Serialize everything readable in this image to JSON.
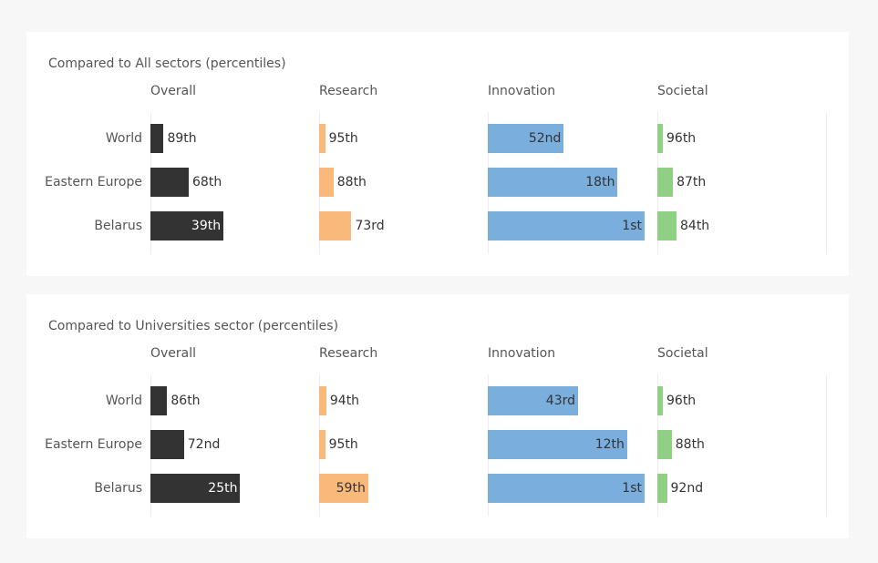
{
  "colors": {
    "overall": "#333333",
    "research": "#f9b97a",
    "innovation": "#7aaedc",
    "societal": "#8fd084"
  },
  "chart_data": [
    {
      "type": "bar",
      "title": "Compared to All sectors (percentiles)",
      "categories": [
        "World",
        "Eastern Europe",
        "Belarus"
      ],
      "series": [
        {
          "name": "Overall",
          "values": [
            89,
            68,
            39
          ],
          "labels": [
            "89th",
            "68th",
            "39th"
          ]
        },
        {
          "name": "Research",
          "values": [
            95,
            88,
            73
          ],
          "labels": [
            "95th",
            "88th",
            "73rd"
          ]
        },
        {
          "name": "Innovation",
          "values": [
            52,
            18,
            1
          ],
          "labels": [
            "52nd",
            "18th",
            "1st"
          ]
        },
        {
          "name": "Societal",
          "values": [
            96,
            87,
            84
          ],
          "labels": [
            "96th",
            "87th",
            "84th"
          ]
        }
      ],
      "orientation": "horizontal",
      "note_scale": "bar length grows as percentile rank improves (1st = longest)"
    },
    {
      "type": "bar",
      "title": "Compared to Universities sector (percentiles)",
      "categories": [
        "World",
        "Eastern Europe",
        "Belarus"
      ],
      "series": [
        {
          "name": "Overall",
          "values": [
            86,
            72,
            25
          ],
          "labels": [
            "86th",
            "72nd",
            "25th"
          ]
        },
        {
          "name": "Research",
          "values": [
            94,
            95,
            59
          ],
          "labels": [
            "94th",
            "95th",
            "59th"
          ]
        },
        {
          "name": "Innovation",
          "values": [
            43,
            12,
            1
          ],
          "labels": [
            "43rd",
            "12th",
            "1st"
          ]
        },
        {
          "name": "Societal",
          "values": [
            96,
            88,
            92
          ],
          "labels": [
            "96th",
            "88th",
            "92nd"
          ]
        }
      ],
      "orientation": "horizontal"
    }
  ]
}
